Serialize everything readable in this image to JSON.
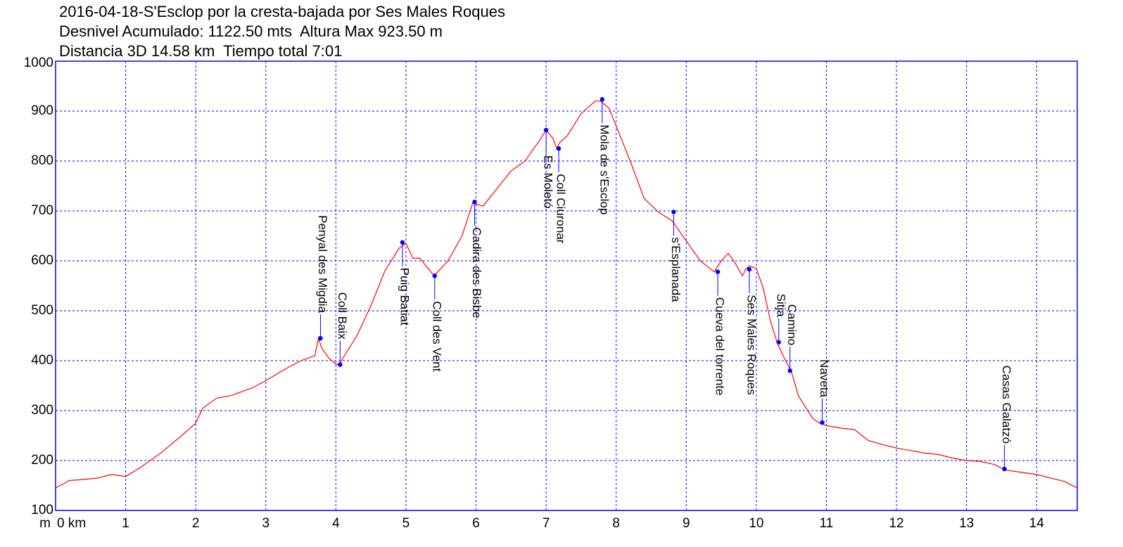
{
  "chart_data": {
    "type": "line",
    "title_lines": [
      "2016-04-18-S'Esclop por la cresta-bajada por Ses Males Roques",
      "Desnivel Acumulado: 1122.50 mts  Altura Max 923.50 m",
      "Distancia 3D 14.58 km  Tiempo total 7:01"
    ],
    "x_unit_label": "m",
    "x_first_tick_label": "0 km",
    "xlim": [
      0,
      14.58
    ],
    "ylim": [
      100,
      1000
    ],
    "x_ticks": [
      0,
      1,
      2,
      3,
      4,
      5,
      6,
      7,
      8,
      9,
      10,
      11,
      12,
      13,
      14
    ],
    "y_ticks": [
      100,
      200,
      300,
      400,
      500,
      600,
      700,
      800,
      900,
      1000
    ],
    "grid": true,
    "colors": {
      "profile": "#ff0000",
      "frame": "#0000ff",
      "waypoint": "#0000ff",
      "label": "#000000"
    },
    "profile": {
      "x": [
        0,
        0.2,
        0.4,
        0.6,
        0.8,
        1.0,
        1.2,
        1.5,
        1.8,
        2.0,
        2.1,
        2.3,
        2.5,
        2.8,
        3.0,
        3.3,
        3.5,
        3.7,
        3.75,
        3.8,
        3.9,
        4.0,
        4.05,
        4.1,
        4.3,
        4.5,
        4.7,
        4.9,
        5.0,
        5.1,
        5.2,
        5.4,
        5.6,
        5.8,
        5.95,
        6.1,
        6.3,
        6.5,
        6.7,
        6.9,
        7.0,
        7.1,
        7.15,
        7.2,
        7.3,
        7.5,
        7.7,
        7.78,
        7.9,
        8.0,
        8.2,
        8.4,
        8.6,
        8.8,
        9.0,
        9.2,
        9.4,
        9.5,
        9.6,
        9.7,
        9.8,
        9.85,
        9.9,
        10.0,
        10.1,
        10.2,
        10.3,
        10.4,
        10.5,
        10.6,
        10.8,
        10.9,
        11.0,
        11.2,
        11.4,
        11.6,
        11.8,
        12.0,
        12.2,
        12.4,
        12.6,
        12.8,
        13.0,
        13.2,
        13.4,
        13.52,
        13.6,
        13.8,
        14.0,
        14.2,
        14.4,
        14.58
      ],
      "y": [
        145,
        160,
        162,
        165,
        172,
        168,
        185,
        215,
        250,
        275,
        305,
        325,
        330,
        345,
        360,
        385,
        400,
        410,
        445,
        425,
        405,
        393,
        392,
        405,
        450,
        510,
        580,
        625,
        635,
        605,
        605,
        570,
        600,
        650,
        715,
        710,
        745,
        780,
        800,
        840,
        862,
        845,
        825,
        838,
        850,
        895,
        920,
        920,
        905,
        870,
        800,
        725,
        698,
        680,
        640,
        600,
        578,
        600,
        615,
        595,
        570,
        583,
        590,
        585,
        545,
        480,
        435,
        405,
        378,
        330,
        285,
        275,
        270,
        265,
        262,
        240,
        232,
        225,
        220,
        215,
        212,
        205,
        200,
        198,
        192,
        183,
        180,
        176,
        172,
        165,
        158,
        145
      ]
    },
    "waypoints": [
      {
        "name": "Penyal des Migdia",
        "x": 3.78,
        "y": 445,
        "label_side": "above"
      },
      {
        "name": "Coll Baix",
        "x": 4.06,
        "y": 392,
        "label_side": "above"
      },
      {
        "name": "Puig Batiat",
        "x": 4.95,
        "y": 637,
        "label_side": "below"
      },
      {
        "name": "Coll des Vent",
        "x": 5.41,
        "y": 570,
        "label_side": "below"
      },
      {
        "name": "Cadira des Bisbe",
        "x": 5.98,
        "y": 718,
        "label_side": "below"
      },
      {
        "name": "Es Moletó",
        "x": 7.0,
        "y": 862,
        "label_side": "below"
      },
      {
        "name": "Coll Ciuronar",
        "x": 7.18,
        "y": 825,
        "label_side": "below"
      },
      {
        "name": "Mola de s'Esclop",
        "x": 7.8,
        "y": 923.5,
        "label_side": "below"
      },
      {
        "name": "s'Esplanada",
        "x": 8.82,
        "y": 698,
        "label_side": "below"
      },
      {
        "name": "Cueva del torrente",
        "x": 9.45,
        "y": 578,
        "label_side": "below"
      },
      {
        "name": "Ses Males Roques",
        "x": 9.9,
        "y": 583,
        "label_side": "below"
      },
      {
        "name": "Sitja",
        "x": 10.32,
        "y": 437,
        "label_side": "above"
      },
      {
        "name": "Camino",
        "x": 10.48,
        "y": 380,
        "label_side": "above"
      },
      {
        "name": "Naveta",
        "x": 10.94,
        "y": 276,
        "label_side": "above"
      },
      {
        "name": "Casas Galatzó",
        "x": 13.54,
        "y": 183,
        "label_side": "above"
      }
    ]
  }
}
